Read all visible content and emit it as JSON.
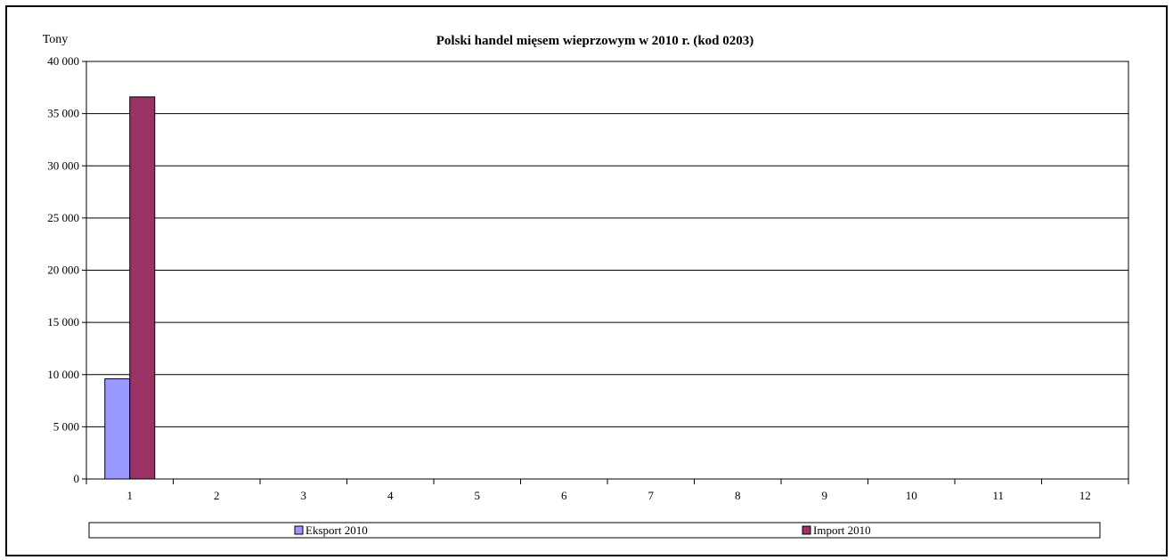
{
  "chart_data": {
    "type": "bar",
    "title": "Polski handel mięsem wieprzowym w 2010 r. (kod 0203)",
    "ylabel": "Tony",
    "xlabel": "",
    "categories": [
      "1",
      "2",
      "3",
      "4",
      "5",
      "6",
      "7",
      "8",
      "9",
      "10",
      "11",
      "12"
    ],
    "ylim": [
      0,
      40000
    ],
    "yticks": [
      0,
      5000,
      10000,
      15000,
      20000,
      25000,
      30000,
      35000,
      40000
    ],
    "ytick_labels": [
      "0",
      "5 000",
      "10 000",
      "15 000",
      "20 000",
      "25 000",
      "30 000",
      "35 000",
      "40 000"
    ],
    "grid": true,
    "legend_position": "bottom",
    "series": [
      {
        "name": "Eksport 2010",
        "color": "#9999ff",
        "values": [
          9600,
          null,
          null,
          null,
          null,
          null,
          null,
          null,
          null,
          null,
          null,
          null
        ]
      },
      {
        "name": "Import 2010",
        "color": "#993366",
        "values": [
          36600,
          null,
          null,
          null,
          null,
          null,
          null,
          null,
          null,
          null,
          null,
          null
        ]
      }
    ]
  }
}
